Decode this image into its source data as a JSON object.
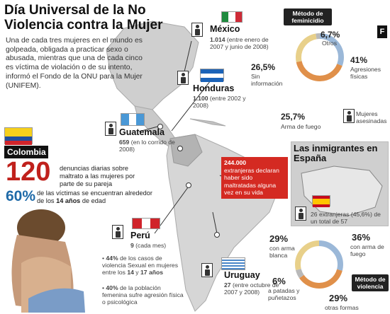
{
  "title": "Día Universal de la No Violencia contra la Mujer",
  "intro": "Una de cada tres mujeres en el mundo es golpeada, obligada a practicar sexo o abusada, mientras que una de cada cinco es víctima de violación o de su intento, informó el Fondo de la ONU para la Mujer (UNIFEM).",
  "colombia": {
    "name": "Colombia",
    "big_number": "120",
    "big_text": "denuncias diarias sobre maltrato a las mujeres por parte de su pareja",
    "pct": "60%",
    "pct_text_a": "de las víctimas se encuentran alrededor de los ",
    "pct_text_b": "14 años",
    "pct_text_c": " de edad"
  },
  "mexico": {
    "name": "México",
    "value": "1.014",
    "note": "(entre enero de 2007 y junio de 2008)"
  },
  "honduras": {
    "name": "Honduras",
    "value": "1.100",
    "note": "(entre 2002 y 2008)"
  },
  "guatemala": {
    "name": "Guatemala",
    "value": "659",
    "note": "(en lo corrido de 2008)"
  },
  "peru": {
    "name": "Perú",
    "value": "9",
    "note": "(cada mes)",
    "b1_a": "44%",
    "b1_b": " de los casos de violencia Sexual en mujeres entre los ",
    "b1_c": "14",
    "b1_d": " y ",
    "b1_e": "17 años",
    "b2_a": "40%",
    "b2_b": " de la población femenina sufre agresión física o psicológica"
  },
  "uruguay": {
    "name": "Uruguay",
    "value": "27",
    "note": "(entre octubre de 2007 y 2008)"
  },
  "feminicidio": {
    "label": "Método de feminicidio",
    "items": [
      {
        "pct": "6,7%",
        "text": "Otros"
      },
      {
        "pct": "41%",
        "text": "Agresiones físicas"
      },
      {
        "pct": "26,5%",
        "text": "Sin información"
      },
      {
        "pct": "25,7%",
        "text": "Arma de fuego"
      }
    ],
    "legend": "Mujeres asesinadas"
  },
  "violencia": {
    "label": "Método de violencia",
    "items": [
      {
        "pct": "29%",
        "text": "con arma blanca"
      },
      {
        "pct": "36%",
        "text": "con arma de fuego"
      },
      {
        "pct": "6%",
        "text": "a patadas y puñetazos"
      },
      {
        "pct": "29%",
        "text": "otras formas"
      }
    ]
  },
  "espana": {
    "title": "Las inmigrantes en España",
    "red_value": "244.000",
    "red_text": "extranjeras declaran haber sido maltratadas alguna vez en su vida",
    "foot": "26 extranjeras (45,6%) de un total de 57",
    "logo": "F"
  },
  "colors": {
    "red": "#d42a22",
    "blue": "#1f6aa8",
    "ring_blue": "#9bb8d8",
    "ring_orange": "#e0904a",
    "ring_sand": "#e8d08a",
    "ring_grey": "#b9b9b9"
  }
}
